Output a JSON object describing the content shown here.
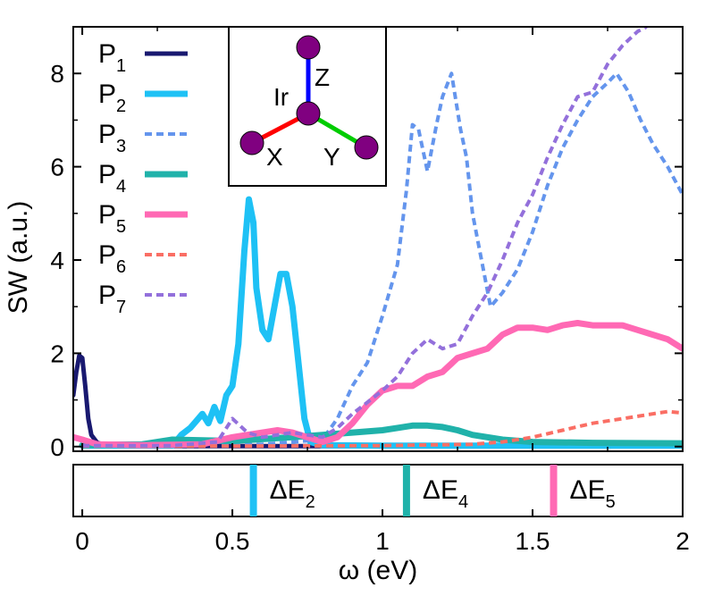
{
  "chart_data": {
    "type": "line",
    "xlabel": "ω (eV)",
    "ylabel": "SW (a.u.)",
    "xlim": [
      -0.03,
      2.0
    ],
    "ylim": [
      -0.1,
      9.0
    ],
    "xticks": [
      "0",
      "0.5",
      "1",
      "1.5",
      "2"
    ],
    "xtick_values": [
      0,
      0.5,
      1,
      1.5,
      2
    ],
    "yticks": [
      "0",
      "2",
      "4",
      "6",
      "8"
    ],
    "ytick_values": [
      0,
      2,
      4,
      6,
      8
    ],
    "legend_position": "top-left",
    "series": [
      {
        "name": "P",
        "sub": "1",
        "color": "#191970",
        "style": "solid",
        "width": 5,
        "x": [
          -0.03,
          -0.02,
          -0.01,
          0.0,
          0.01,
          0.02,
          0.03,
          0.05,
          0.08,
          0.15,
          0.3,
          0.6,
          1.0,
          1.5,
          2.0
        ],
        "y": [
          1.1,
          1.6,
          1.95,
          1.9,
          1.3,
          0.6,
          0.25,
          0.08,
          0.03,
          0.02,
          0.01,
          0.01,
          0.01,
          0.01,
          0.01
        ]
      },
      {
        "name": "P",
        "sub": "2",
        "color": "#1ec1f5",
        "style": "solid",
        "width": 7,
        "x": [
          0.0,
          0.3,
          0.33,
          0.36,
          0.38,
          0.4,
          0.42,
          0.44,
          0.46,
          0.48,
          0.5,
          0.52,
          0.54,
          0.555,
          0.57,
          0.58,
          0.6,
          0.62,
          0.64,
          0.66,
          0.68,
          0.7,
          0.72,
          0.74,
          0.76,
          0.8,
          1.0,
          1.2,
          1.5,
          2.0
        ],
        "y": [
          0.02,
          0.02,
          0.25,
          0.4,
          0.55,
          0.7,
          0.5,
          0.85,
          0.55,
          1.1,
          1.3,
          2.2,
          4.2,
          5.3,
          4.8,
          3.4,
          2.5,
          2.3,
          3.0,
          3.7,
          3.7,
          3.0,
          1.8,
          0.6,
          0.1,
          0.03,
          0.02,
          0.02,
          0.02,
          0.02
        ]
      },
      {
        "name": "P",
        "sub": "3",
        "color": "#6495ed",
        "style": "dash",
        "width": 4,
        "x": [
          0.0,
          0.3,
          0.6,
          0.8,
          0.85,
          0.9,
          0.95,
          1.0,
          1.05,
          1.08,
          1.1,
          1.12,
          1.15,
          1.18,
          1.2,
          1.23,
          1.26,
          1.28,
          1.3,
          1.33,
          1.36,
          1.4,
          1.45,
          1.5,
          1.55,
          1.6,
          1.65,
          1.7,
          1.75,
          1.78,
          1.82,
          1.86,
          1.9,
          1.95,
          2.0
        ],
        "y": [
          0.02,
          0.02,
          0.05,
          0.15,
          0.6,
          1.3,
          1.8,
          2.8,
          3.9,
          5.5,
          6.9,
          6.8,
          5.9,
          6.9,
          7.5,
          8.0,
          6.8,
          6.2,
          5.0,
          4.0,
          3.0,
          3.3,
          3.8,
          4.6,
          5.6,
          6.4,
          7.0,
          7.5,
          7.8,
          8.0,
          7.6,
          7.0,
          6.5,
          6.0,
          5.4
        ]
      },
      {
        "name": "P",
        "sub": "4",
        "color": "#20b2aa",
        "style": "solid",
        "width": 7,
        "x": [
          0.0,
          0.2,
          0.3,
          0.5,
          0.7,
          0.8,
          0.9,
          1.0,
          1.05,
          1.1,
          1.15,
          1.2,
          1.25,
          1.3,
          1.4,
          1.5,
          1.7,
          2.0
        ],
        "y": [
          0.03,
          0.05,
          0.15,
          0.12,
          0.2,
          0.25,
          0.3,
          0.35,
          0.4,
          0.45,
          0.45,
          0.42,
          0.35,
          0.25,
          0.15,
          0.1,
          0.08,
          0.07
        ]
      },
      {
        "name": "P",
        "sub": "5",
        "color": "#ff69b4",
        "style": "solid",
        "width": 7,
        "x": [
          -0.03,
          0.0,
          0.05,
          0.2,
          0.4,
          0.5,
          0.6,
          0.65,
          0.7,
          0.75,
          0.8,
          0.85,
          0.9,
          0.95,
          1.0,
          1.05,
          1.1,
          1.15,
          1.2,
          1.25,
          1.3,
          1.35,
          1.4,
          1.45,
          1.5,
          1.55,
          1.6,
          1.65,
          1.7,
          1.75,
          1.8,
          1.85,
          1.9,
          1.95,
          2.0
        ],
        "y": [
          0.2,
          0.15,
          0.05,
          0.03,
          0.05,
          0.2,
          0.3,
          0.35,
          0.3,
          0.2,
          0.1,
          0.2,
          0.5,
          0.9,
          1.2,
          1.3,
          1.3,
          1.5,
          1.6,
          1.9,
          2.0,
          2.1,
          2.4,
          2.55,
          2.55,
          2.5,
          2.6,
          2.65,
          2.6,
          2.6,
          2.6,
          2.5,
          2.4,
          2.3,
          2.1
        ]
      },
      {
        "name": "P",
        "sub": "6",
        "color": "#fa6e64",
        "style": "dash",
        "width": 4,
        "x": [
          0.0,
          0.5,
          1.0,
          1.3,
          1.4,
          1.5,
          1.6,
          1.7,
          1.8,
          1.85,
          1.9,
          1.95,
          2.0
        ],
        "y": [
          0.01,
          0.01,
          0.02,
          0.05,
          0.1,
          0.2,
          0.35,
          0.5,
          0.6,
          0.65,
          0.7,
          0.75,
          0.72
        ]
      },
      {
        "name": "P",
        "sub": "7",
        "color": "#9370db",
        "style": "dash",
        "width": 4,
        "x": [
          0.0,
          0.3,
          0.45,
          0.5,
          0.55,
          0.6,
          0.7,
          0.8,
          0.85,
          0.9,
          0.95,
          1.0,
          1.05,
          1.1,
          1.15,
          1.2,
          1.25,
          1.3,
          1.35,
          1.4,
          1.45,
          1.5,
          1.55,
          1.6,
          1.65,
          1.7,
          1.75,
          1.8,
          1.85,
          1.88
        ],
        "y": [
          0.02,
          0.02,
          0.1,
          0.6,
          0.3,
          0.2,
          0.3,
          0.2,
          0.4,
          0.7,
          0.95,
          1.2,
          1.5,
          2.0,
          2.3,
          2.1,
          2.2,
          2.8,
          3.3,
          4.0,
          4.8,
          5.4,
          6.2,
          6.9,
          7.5,
          7.6,
          8.2,
          8.6,
          8.9,
          9.0
        ]
      }
    ],
    "markers": [
      {
        "label": "ΔE",
        "sub": "2",
        "x": 0.57,
        "color": "#1ec1f5"
      },
      {
        "label": "ΔE",
        "sub": "4",
        "x": 1.08,
        "color": "#20b2aa"
      },
      {
        "label": "ΔE",
        "sub": "5",
        "x": 1.57,
        "color": "#ff69b4"
      }
    ],
    "inset": {
      "center_label": "Ir",
      "axes": [
        {
          "label": "Z",
          "color": "#0000ff"
        },
        {
          "label": "X",
          "color": "#ff0000"
        },
        {
          "label": "Y",
          "color": "#00cc00"
        }
      ],
      "atom_color": "#800080"
    }
  }
}
